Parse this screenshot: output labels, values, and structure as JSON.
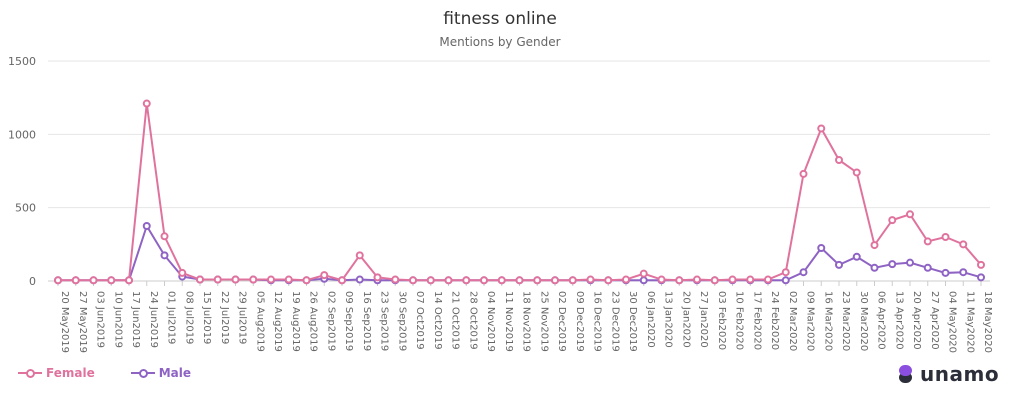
{
  "colors": {
    "female": "#e0739e",
    "male": "#8e63c4",
    "grid": "#e6e6e6",
    "text": "#666666",
    "title": "#333333"
  },
  "brand": {
    "name": "unamo",
    "icon": "unamo-logo-icon"
  },
  "legend": {
    "position": "bottom-left"
  },
  "chart_data": {
    "type": "line",
    "title": "fitness online",
    "subtitle": "Mentions by Gender",
    "xlabel": "",
    "ylabel": "",
    "ylim": [
      0,
      1500
    ],
    "yticks": [
      "0",
      "500",
      "1000",
      "1500"
    ],
    "grid": true,
    "categories": [
      "20 May2019",
      "27 May2019",
      "03 Jun2019",
      "10 Jun2019",
      "17 Jun2019",
      "24 Jun2019",
      "01 Jul2019",
      "08 Jul2019",
      "15 Jul2019",
      "22 Jul2019",
      "29 Jul2019",
      "05 Aug2019",
      "12 Aug2019",
      "19 Aug2019",
      "26 Aug2019",
      "02 Sep2019",
      "09 Sep2019",
      "16 Sep2019",
      "23 Sep2019",
      "30 Sep2019",
      "07 Oct2019",
      "14 Oct2019",
      "21 Oct2019",
      "28 Oct2019",
      "04 Nov2019",
      "11 Nov2019",
      "18 Nov2019",
      "25 Nov2019",
      "02 Dec2019",
      "09 Dec2019",
      "16 Dec2019",
      "23 Dec2019",
      "30 Dec2019",
      "06 Jan2020",
      "13 Jan2020",
      "20 Jan2020",
      "27 Jan2020",
      "03 Feb2020",
      "10 Feb2020",
      "17 Feb2020",
      "24 Feb2020",
      "02 Mar2020",
      "09 Mar2020",
      "16 Mar2020",
      "23 Mar2020",
      "30 Mar2020",
      "06 Apr2020",
      "13 Apr2020",
      "20 Apr2020",
      "27 Apr2020",
      "04 May2020",
      "11 May2020",
      "18 May2020"
    ],
    "series": [
      {
        "name": "Female",
        "values": [
          5,
          5,
          5,
          5,
          5,
          1210,
          305,
          55,
          10,
          10,
          10,
          10,
          10,
          10,
          5,
          40,
          5,
          175,
          25,
          10,
          5,
          5,
          5,
          5,
          5,
          5,
          5,
          5,
          5,
          5,
          10,
          5,
          10,
          50,
          10,
          5,
          10,
          5,
          10,
          10,
          10,
          60,
          730,
          1040,
          825,
          740,
          245,
          415,
          455,
          270,
          300,
          250,
          110
        ]
      },
      {
        "name": "Male",
        "values": [
          5,
          5,
          5,
          5,
          5,
          375,
          175,
          30,
          10,
          10,
          10,
          10,
          5,
          5,
          5,
          15,
          5,
          10,
          5,
          5,
          5,
          5,
          5,
          5,
          5,
          5,
          5,
          5,
          5,
          5,
          5,
          5,
          5,
          5,
          5,
          5,
          5,
          5,
          5,
          5,
          5,
          5,
          60,
          225,
          110,
          165,
          90,
          115,
          125,
          90,
          55,
          60,
          25
        ]
      }
    ]
  }
}
